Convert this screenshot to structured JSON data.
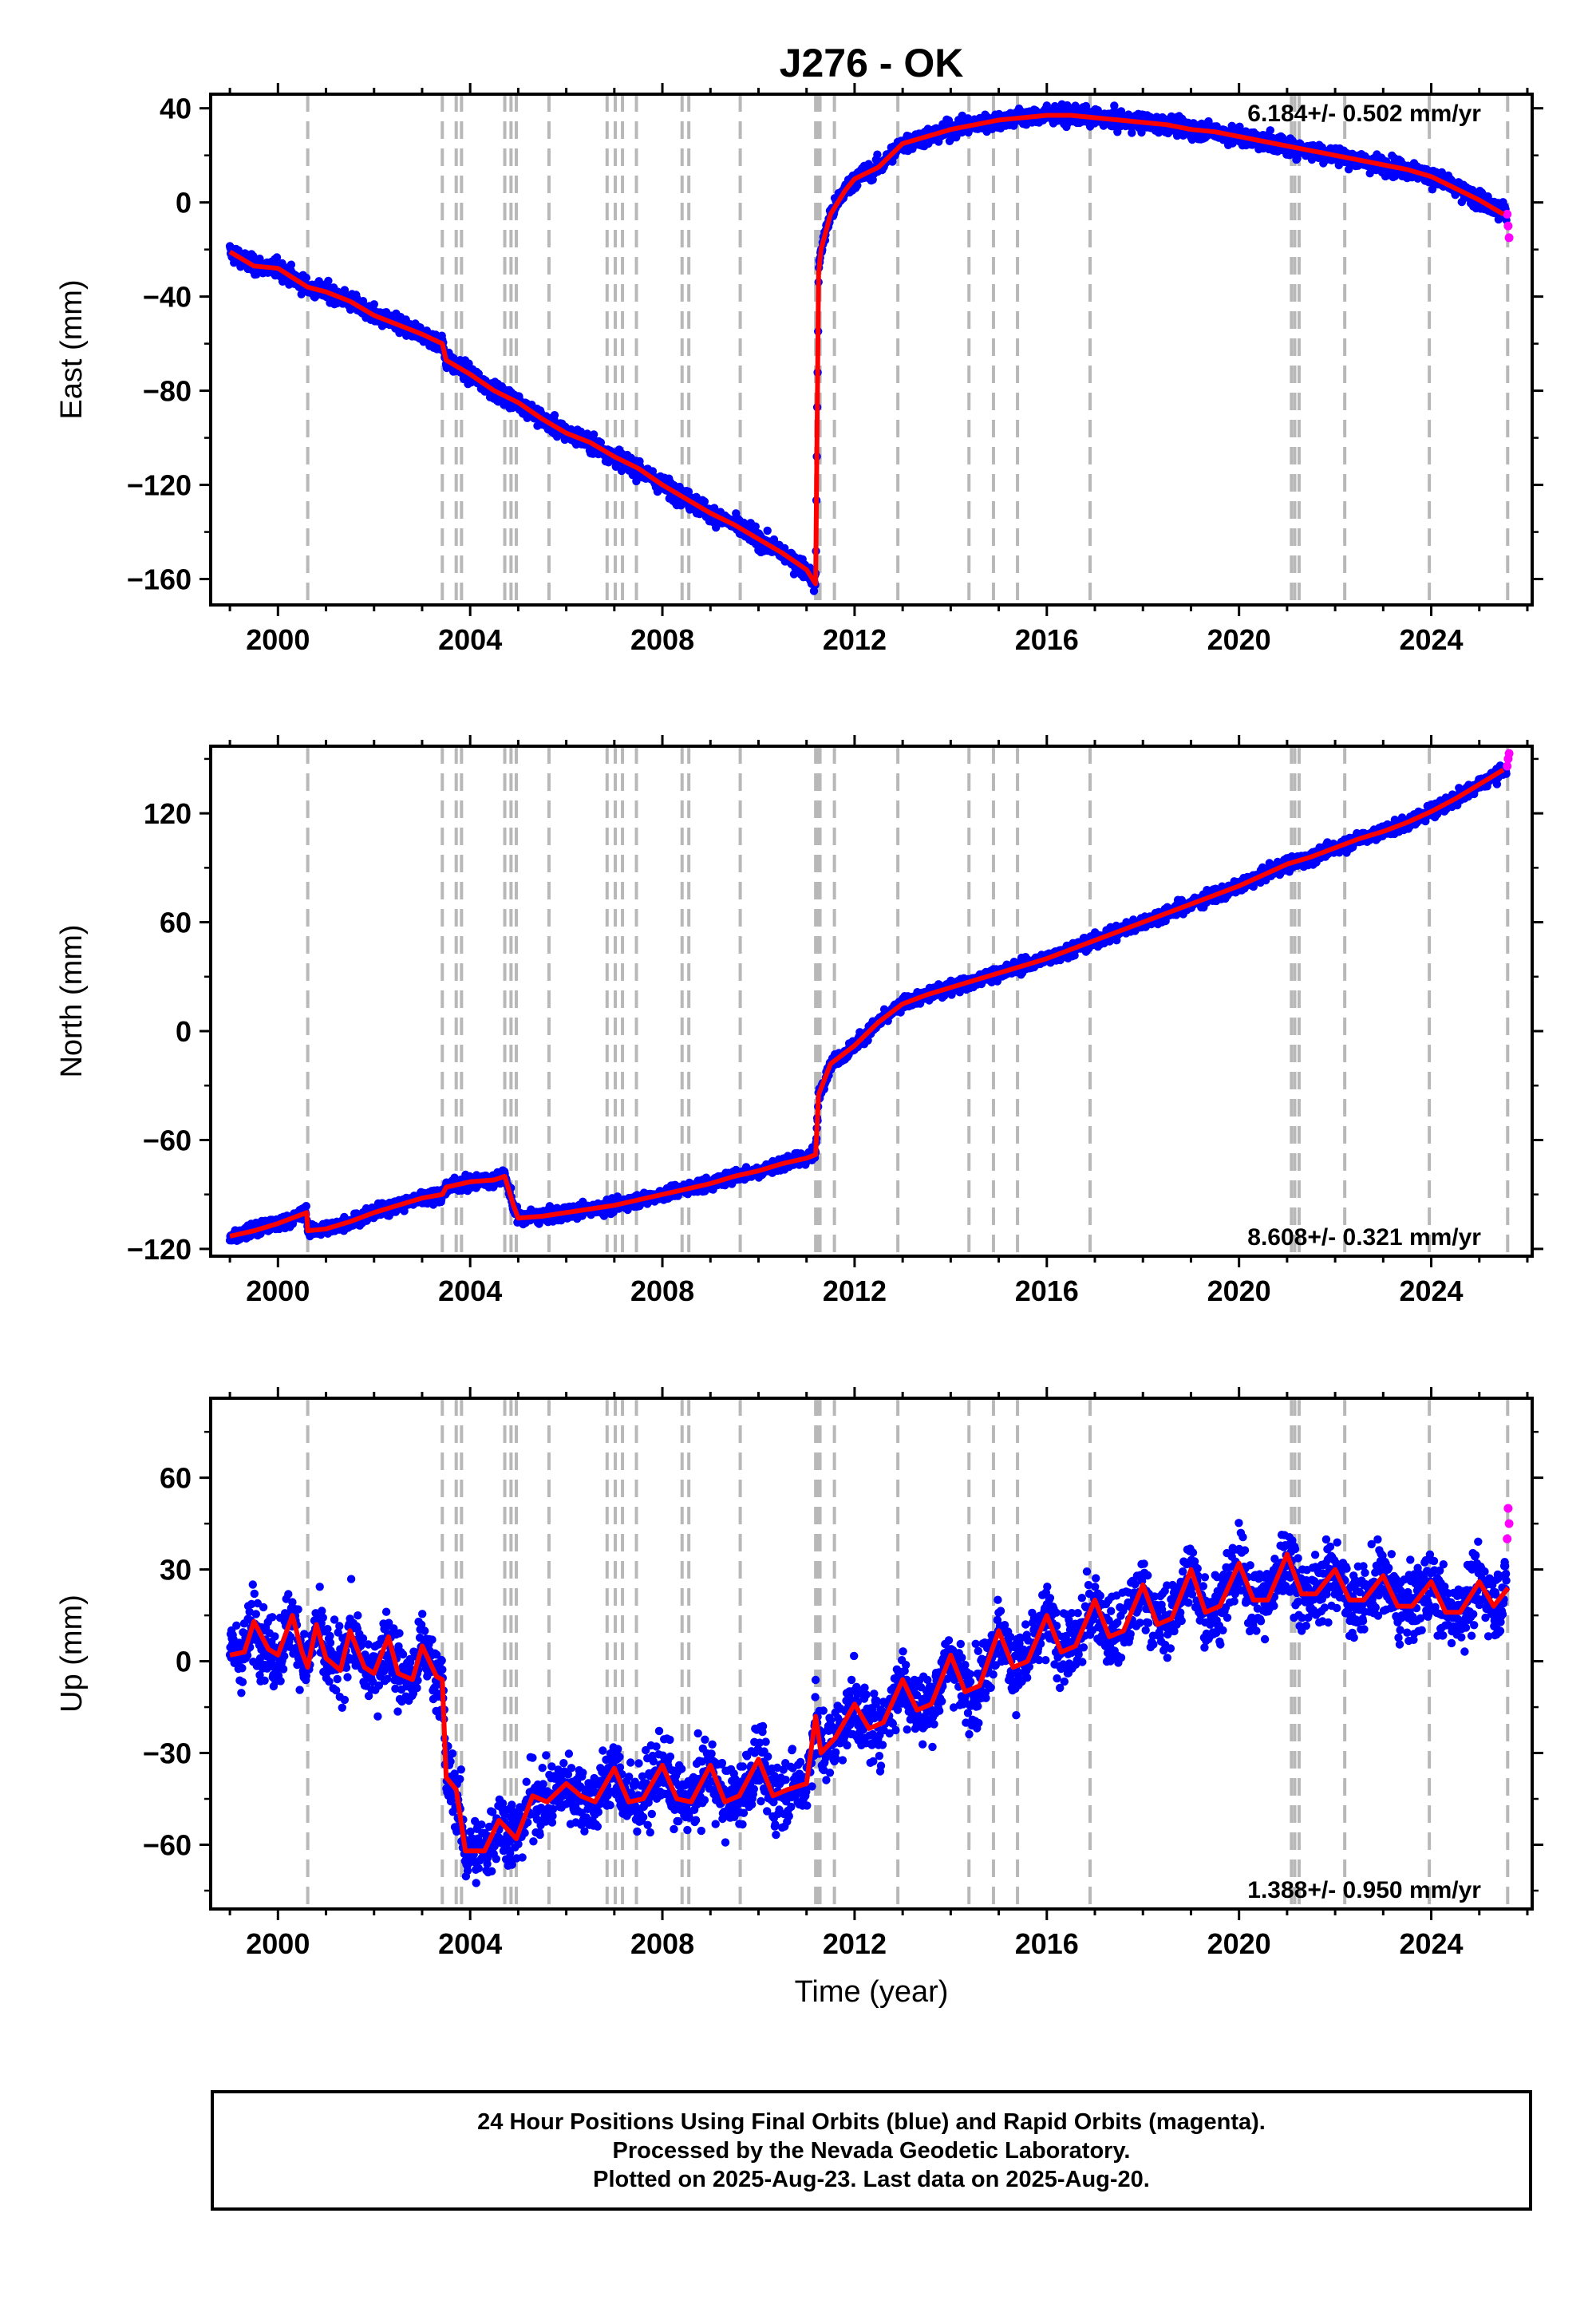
{
  "title": "J276 - OK",
  "x_axis_label": "Time (year)",
  "caption": [
    "24 Hour Positions Using Final Orbits (blue) and Rapid Orbits (magenta).",
    "Processed by the Nevada Geodetic Laboratory.",
    "Plotted on 2025-Aug-23. Last data on 2025-Aug-20."
  ],
  "colors": {
    "final_orbits": "#0000ff",
    "rapid_orbits": "#ff00ff",
    "model_fit": "#ff0000",
    "event_lines": "#b8b8b8",
    "frame": "#000000"
  },
  "chart_data": [
    {
      "type": "scatter",
      "panel": "east",
      "ylabel": "East (mm)",
      "rate_label": "6.184+/- 0.502 mm/yr",
      "rate_position": "top-right",
      "xlim": [
        1998.6,
        2026.1
      ],
      "ylim": [
        -171,
        46
      ],
      "x_ticks": [
        2000,
        2004,
        2008,
        2012,
        2016,
        2020,
        2024
      ],
      "y_ticks": [
        40,
        0,
        -40,
        -80,
        -120,
        -160
      ],
      "event_lines_years": [
        2000.62,
        2003.42,
        2003.71,
        2003.82,
        2004.72,
        2004.85,
        2004.96,
        2005.64,
        2006.85,
        2007.02,
        2007.17,
        2007.46,
        2008.41,
        2008.55,
        2009.62,
        2011.19,
        2011.22,
        2011.25,
        2011.28,
        2011.58,
        2012.9,
        2014.38,
        2014.89,
        2015.39,
        2016.9,
        2021.09,
        2021.16,
        2021.25,
        2022.2,
        2023.96,
        2025.59
      ],
      "series": [
        {
          "role": "model",
          "x": [
            1999.0,
            1999.5,
            2000.0,
            2000.62,
            2001.0,
            2001.5,
            2002.0,
            2002.5,
            2003.0,
            2003.42,
            2003.5,
            2004.0,
            2004.5,
            2005.0,
            2005.5,
            2006.0,
            2006.5,
            2007.0,
            2007.5,
            2008.0,
            2008.5,
            2009.0,
            2009.5,
            2010.0,
            2010.5,
            2011.0,
            2011.19,
            2011.25,
            2011.3,
            2011.5,
            2011.8,
            2012.0,
            2012.5,
            2013.0,
            2013.5,
            2014.0,
            2014.5,
            2015.0,
            2015.5,
            2016.0,
            2016.5,
            2017.0,
            2017.5,
            2018.0,
            2018.5,
            2019.0,
            2019.5,
            2020.0,
            2020.5,
            2021.0,
            2021.5,
            2022.0,
            2022.5,
            2023.0,
            2023.5,
            2024.0,
            2024.5,
            2025.0,
            2025.5
          ],
          "y": [
            -21,
            -27,
            -28,
            -36,
            -38,
            -42,
            -48,
            -52,
            -56,
            -60,
            -67,
            -73,
            -80,
            -85,
            -92,
            -98,
            -102,
            -108,
            -113,
            -120,
            -126,
            -132,
            -137,
            -143,
            -149,
            -156,
            -162,
            -30,
            -20,
            -5,
            5,
            10,
            15,
            25,
            28,
            31,
            33,
            35,
            36,
            37,
            37,
            36,
            35,
            34,
            33,
            31,
            30,
            28,
            26,
            24,
            22,
            20,
            18,
            16,
            14,
            11,
            6,
            1,
            -5
          ]
        },
        {
          "role": "rapid_orbits",
          "x": [
            2025.58,
            2025.6,
            2025.62
          ],
          "y": [
            -5,
            -10,
            -15
          ]
        }
      ]
    },
    {
      "type": "scatter",
      "panel": "north",
      "ylabel": "North (mm)",
      "rate_label": "8.608+/- 0.321 mm/yr",
      "rate_position": "bottom-right",
      "xlim": [
        1998.6,
        2026.1
      ],
      "ylim": [
        -124,
        157
      ],
      "x_ticks": [
        2000,
        2004,
        2008,
        2012,
        2016,
        2020,
        2024
      ],
      "y_ticks": [
        120,
        60,
        0,
        -60,
        -120
      ],
      "event_lines_years": [
        2000.62,
        2003.42,
        2003.71,
        2003.82,
        2004.72,
        2004.85,
        2004.96,
        2005.64,
        2006.85,
        2007.02,
        2007.17,
        2007.46,
        2008.41,
        2008.55,
        2009.62,
        2011.19,
        2011.22,
        2011.25,
        2011.28,
        2011.58,
        2012.9,
        2014.38,
        2014.89,
        2015.39,
        2016.9,
        2021.09,
        2021.16,
        2021.25,
        2022.2,
        2023.96,
        2025.59
      ],
      "series": [
        {
          "role": "model",
          "x": [
            1999.0,
            1999.5,
            2000.0,
            2000.6,
            2000.62,
            2001.0,
            2001.5,
            2002.0,
            2002.5,
            2003.0,
            2003.42,
            2003.5,
            2004.0,
            2004.5,
            2004.72,
            2004.9,
            2005.0,
            2005.5,
            2006.0,
            2006.5,
            2007.0,
            2007.5,
            2008.0,
            2008.5,
            2009.0,
            2009.5,
            2010.0,
            2010.5,
            2011.0,
            2011.19,
            2011.25,
            2011.5,
            2012.0,
            2012.5,
            2013.0,
            2013.5,
            2014.0,
            2014.5,
            2015.0,
            2015.5,
            2016.0,
            2016.5,
            2017.0,
            2017.5,
            2018.0,
            2018.5,
            2019.0,
            2019.5,
            2020.0,
            2020.5,
            2021.0,
            2021.5,
            2022.0,
            2022.5,
            2023.0,
            2023.5,
            2024.0,
            2024.5,
            2025.0,
            2025.5
          ],
          "y": [
            -113,
            -110,
            -106,
            -100,
            -110,
            -109,
            -105,
            -100,
            -96,
            -92,
            -90,
            -86,
            -83,
            -82,
            -80,
            -96,
            -103,
            -102,
            -100,
            -98,
            -96,
            -93,
            -90,
            -87,
            -84,
            -80,
            -77,
            -73,
            -70,
            -68,
            -35,
            -18,
            -8,
            5,
            15,
            20,
            24,
            28,
            32,
            36,
            40,
            45,
            50,
            55,
            60,
            65,
            70,
            75,
            80,
            86,
            92,
            96,
            101,
            106,
            110,
            115,
            121,
            128,
            136,
            144
          ]
        },
        {
          "role": "rapid_orbits",
          "x": [
            2025.58,
            2025.6,
            2025.62
          ],
          "y": [
            146,
            150,
            153
          ]
        }
      ]
    },
    {
      "type": "scatter",
      "panel": "up",
      "ylabel": "Up (mm)",
      "xlabel": "Time (year)",
      "rate_label": "1.388+/- 0.950 mm/yr",
      "rate_position": "bottom-right",
      "xlim": [
        1998.6,
        2026.1
      ],
      "ylim": [
        -81,
        86
      ],
      "x_ticks": [
        2000,
        2004,
        2008,
        2012,
        2016,
        2020,
        2024
      ],
      "y_ticks": [
        60,
        30,
        0,
        -30,
        -60
      ],
      "event_lines_years": [
        2000.62,
        2003.42,
        2003.71,
        2003.82,
        2004.72,
        2004.85,
        2004.96,
        2005.64,
        2006.85,
        2007.02,
        2007.17,
        2007.46,
        2008.41,
        2008.55,
        2009.62,
        2011.19,
        2011.22,
        2011.25,
        2011.28,
        2011.58,
        2012.9,
        2014.38,
        2014.89,
        2015.39,
        2016.9,
        2021.09,
        2021.16,
        2021.25,
        2022.2,
        2023.96,
        2025.59
      ],
      "series": [
        {
          "role": "model",
          "x": [
            1999.0,
            1999.3,
            1999.5,
            1999.8,
            2000.0,
            2000.3,
            2000.5,
            2000.62,
            2000.8,
            2001.0,
            2001.3,
            2001.5,
            2001.8,
            2002.0,
            2002.3,
            2002.5,
            2002.8,
            2003.0,
            2003.3,
            2003.42,
            2003.5,
            2003.71,
            2003.9,
            2004.3,
            2004.6,
            2004.96,
            2005.3,
            2005.6,
            2006.0,
            2006.3,
            2006.6,
            2007.0,
            2007.3,
            2007.6,
            2008.0,
            2008.3,
            2008.6,
            2009.0,
            2009.3,
            2009.6,
            2010.0,
            2010.3,
            2010.6,
            2011.0,
            2011.19,
            2011.3,
            2011.6,
            2012.0,
            2012.3,
            2012.6,
            2013.0,
            2013.3,
            2013.6,
            2014.0,
            2014.3,
            2014.6,
            2015.0,
            2015.3,
            2015.6,
            2016.0,
            2016.3,
            2016.6,
            2017.0,
            2017.3,
            2017.6,
            2018.0,
            2018.3,
            2018.6,
            2019.0,
            2019.3,
            2019.6,
            2020.0,
            2020.3,
            2020.6,
            2021.0,
            2021.3,
            2021.6,
            2022.0,
            2022.3,
            2022.6,
            2023.0,
            2023.3,
            2023.6,
            2024.0,
            2024.3,
            2024.6,
            2025.0,
            2025.3,
            2025.6
          ],
          "y": [
            2,
            3,
            13,
            4,
            2,
            15,
            3,
            -2,
            12,
            1,
            -3,
            10,
            -2,
            -4,
            8,
            -4,
            -6,
            5,
            -5,
            -6,
            -38,
            -42,
            -62,
            -62,
            -52,
            -58,
            -44,
            -46,
            -40,
            -44,
            -46,
            -35,
            -46,
            -45,
            -34,
            -45,
            -46,
            -34,
            -46,
            -44,
            -32,
            -44,
            -42,
            -40,
            -18,
            -30,
            -25,
            -14,
            -22,
            -20,
            -6,
            -16,
            -14,
            2,
            -10,
            -8,
            10,
            -2,
            0,
            15,
            3,
            5,
            20,
            8,
            10,
            25,
            12,
            14,
            30,
            16,
            18,
            32,
            20,
            20,
            35,
            22,
            22,
            30,
            20,
            20,
            28,
            18,
            18,
            26,
            16,
            16,
            26,
            18,
            24
          ]
        },
        {
          "role": "rapid_orbits",
          "x": [
            2025.58,
            2025.6,
            2025.62
          ],
          "y": [
            40,
            50,
            45
          ]
        }
      ]
    }
  ]
}
